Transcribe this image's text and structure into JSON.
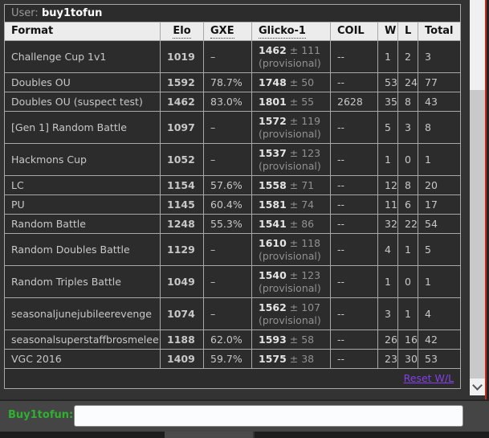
{
  "user_bar": {
    "label": "User:",
    "username": "buy1tofun"
  },
  "table": {
    "headers": [
      {
        "label": "Format",
        "dotted": false,
        "key": "format"
      },
      {
        "label": "Elo",
        "dotted": true,
        "key": "elo"
      },
      {
        "label": "GXE",
        "dotted": true,
        "key": "gxe"
      },
      {
        "label": "Glicko-1",
        "dotted": true,
        "key": "glicko"
      },
      {
        "label": "COIL",
        "dotted": false,
        "key": "coil"
      },
      {
        "label": "W",
        "dotted": false,
        "key": "w"
      },
      {
        "label": "L",
        "dotted": false,
        "key": "l"
      },
      {
        "label": "Total",
        "dotted": false,
        "key": "total"
      }
    ],
    "provisional_label": "(provisional)",
    "reset_link": "Reset W/L",
    "rows": [
      {
        "format": "Challenge Cup 1v1",
        "elo": "1019",
        "gxe": "–",
        "glicko": "1462",
        "glicko_dev": "± 111",
        "provisional": true,
        "coil": "--",
        "w": "1",
        "l": "2",
        "total": "3"
      },
      {
        "format": "Doubles OU",
        "elo": "1592",
        "gxe": "78.7%",
        "glicko": "1748",
        "glicko_dev": "± 50",
        "provisional": false,
        "coil": "--",
        "w": "53",
        "l": "24",
        "total": "77"
      },
      {
        "format": "Doubles OU (suspect test)",
        "elo": "1462",
        "gxe": "83.0%",
        "glicko": "1801",
        "glicko_dev": "± 55",
        "provisional": false,
        "coil": "2628",
        "w": "35",
        "l": "8",
        "total": "43"
      },
      {
        "format": "[Gen 1] Random Battle",
        "elo": "1097",
        "gxe": "–",
        "glicko": "1572",
        "glicko_dev": "± 119",
        "provisional": true,
        "coil": "--",
        "w": "5",
        "l": "3",
        "total": "8"
      },
      {
        "format": "Hackmons Cup",
        "elo": "1052",
        "gxe": "–",
        "glicko": "1537",
        "glicko_dev": "± 123",
        "provisional": true,
        "coil": "--",
        "w": "1",
        "l": "0",
        "total": "1"
      },
      {
        "format": "LC",
        "elo": "1154",
        "gxe": "57.6%",
        "glicko": "1558",
        "glicko_dev": "± 71",
        "provisional": false,
        "coil": "--",
        "w": "12",
        "l": "8",
        "total": "20"
      },
      {
        "format": "PU",
        "elo": "1145",
        "gxe": "60.4%",
        "glicko": "1581",
        "glicko_dev": "± 74",
        "provisional": false,
        "coil": "--",
        "w": "11",
        "l": "6",
        "total": "17"
      },
      {
        "format": "Random Battle",
        "elo": "1248",
        "gxe": "55.3%",
        "glicko": "1541",
        "glicko_dev": "± 86",
        "provisional": false,
        "coil": "--",
        "w": "32",
        "l": "22",
        "total": "54"
      },
      {
        "format": "Random Doubles Battle",
        "elo": "1129",
        "gxe": "–",
        "glicko": "1610",
        "glicko_dev": "± 118",
        "provisional": true,
        "coil": "--",
        "w": "4",
        "l": "1",
        "total": "5"
      },
      {
        "format": "Random Triples Battle",
        "elo": "1049",
        "gxe": "–",
        "glicko": "1540",
        "glicko_dev": "± 123",
        "provisional": true,
        "coil": "--",
        "w": "1",
        "l": "0",
        "total": "1"
      },
      {
        "format": "seasonaljunejubileerevenge",
        "elo": "1074",
        "gxe": "–",
        "glicko": "1562",
        "glicko_dev": "± 107",
        "provisional": true,
        "coil": "--",
        "w": "3",
        "l": "1",
        "total": "4"
      },
      {
        "format": "seasonalsuperstaffbrosmelee",
        "elo": "1188",
        "gxe": "62.0%",
        "glicko": "1593",
        "glicko_dev": "± 58",
        "provisional": false,
        "coil": "--",
        "w": "26",
        "l": "16",
        "total": "42"
      },
      {
        "format": "VGC 2016",
        "elo": "1409",
        "gxe": "59.7%",
        "glicko": "1575",
        "glicko_dev": "± 38",
        "provisional": false,
        "coil": "--",
        "w": "23",
        "l": "30",
        "total": "53"
      }
    ]
  },
  "chat": {
    "label": "Buy1tofun:",
    "input_value": ""
  },
  "scrollbar": {
    "down_icon": "chevron-down"
  },
  "colors": {
    "page_bg": "#333333",
    "row_bg": "#2c2c2c",
    "header_bg": "#ececec",
    "border_gray": "#a8a8a8",
    "elo_white": "#ffffff",
    "link_purple": "#8540e8",
    "username_green": "#30b030",
    "edge_red": "#c5281c",
    "scrollbar_track": "#f0f0f0",
    "scrollbar_thumb": "#c9c9c9"
  }
}
